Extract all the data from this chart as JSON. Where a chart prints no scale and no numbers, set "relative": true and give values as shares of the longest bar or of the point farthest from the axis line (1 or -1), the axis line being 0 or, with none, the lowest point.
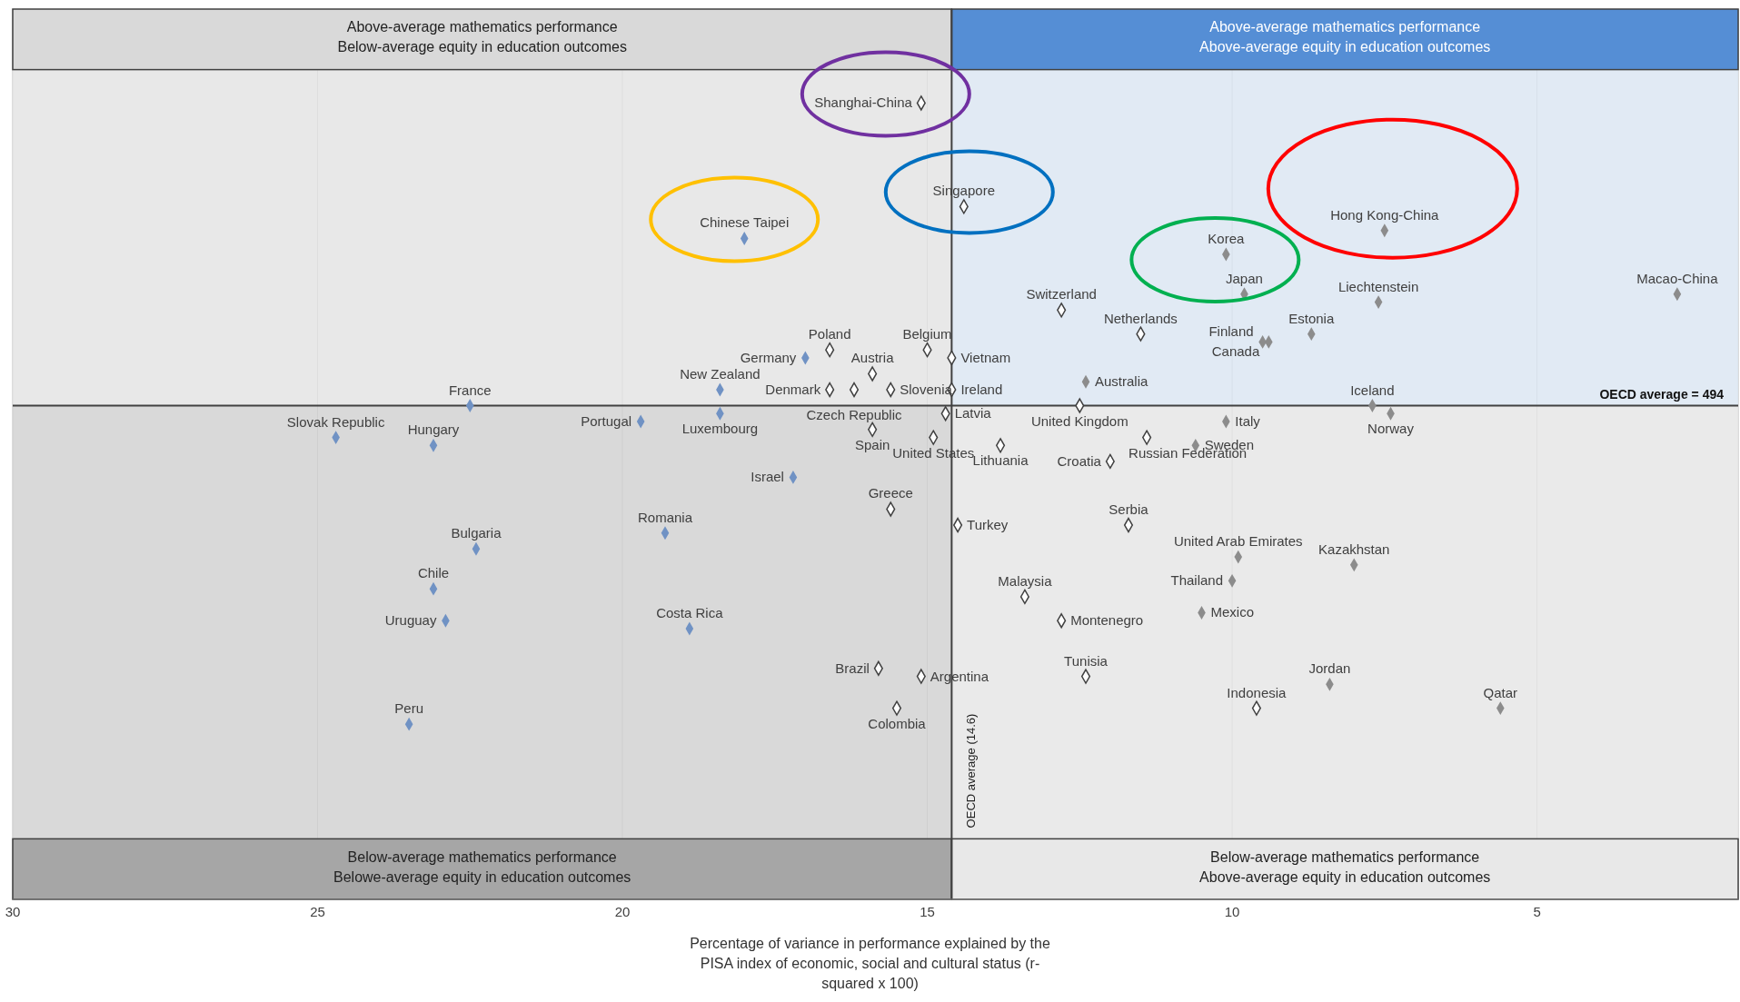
{
  "chart_data": {
    "type": "scatter",
    "relative": true,
    "xlabel": "Percentage of variance in performance explained by the PISA index of economic, social and cultural status (r-squared x 100)",
    "xlim": [
      30,
      1.7
    ],
    "xticks": [
      30,
      25,
      20,
      15,
      10,
      5
    ],
    "grid": "x",
    "marker": "diamond",
    "series": [
      {
        "x": [
          18.0,
          17.0,
          18.4,
          22.5,
          18.4,
          19.7,
          24.7,
          23.1,
          17.2,
          19.3,
          22.4,
          23.1,
          22.9,
          18.9,
          23.5,
          7.5,
          10.1,
          9.8,
          7.6,
          2.7,
          8.7,
          9.5,
          9.4,
          12.4,
          7.7,
          7.4,
          10.1,
          10.6,
          9.9,
          8.0,
          10.0,
          10.5,
          8.4,
          5.6
        ],
        "values": [
          0.83,
          0.68,
          0.64,
          0.62,
          0.61,
          0.6,
          0.58,
          0.57,
          0.53,
          0.46,
          0.44,
          0.39,
          0.35,
          0.34,
          0.22,
          0.84,
          0.81,
          0.76,
          0.75,
          0.76,
          0.71,
          0.7,
          0.7,
          0.65,
          0.62,
          0.61,
          0.6,
          0.57,
          0.43,
          0.42,
          0.4,
          0.36,
          0.27,
          0.24
        ],
        "colors": [
          "#7092c4",
          "#7092c4",
          "#7092c4",
          "#7092c4",
          "#7092c4",
          "#7092c4",
          "#7092c4",
          "#7092c4",
          "#7092c4",
          "#7092c4",
          "#7092c4",
          "#7092c4",
          "#7092c4",
          "#7092c4",
          "#7092c4",
          "#8c8c8c",
          "#8c8c8c",
          "#8c8c8c",
          "#8c8c8c",
          "#8c8c8c",
          "#8c8c8c",
          "#8c8c8c",
          "#8c8c8c",
          "#8c8c8c",
          "#8c8c8c",
          "#8c8c8c",
          "#8c8c8c",
          "#8c8c8c",
          "#8c8c8c",
          "#8c8c8c",
          "#8c8c8c",
          "#8c8c8c",
          "#8c8c8c",
          "#8c8c8c"
        ]
      },
      {
        "x": [
          15.1,
          14.4,
          16.6,
          15.0,
          14.6,
          15.9,
          15.6,
          14.6,
          16.6,
          16.2,
          14.7,
          12.5,
          15.9,
          11.4,
          14.9,
          13.8,
          12.8,
          11.5,
          12.0,
          15.6,
          11.7,
          14.5,
          13.4,
          12.8,
          12.4,
          9.6,
          15.8,
          15.1,
          15.5
        ],
        "values": [
          1.0,
          0.87,
          0.69,
          0.69,
          0.68,
          0.66,
          0.64,
          0.64,
          0.64,
          0.64,
          0.61,
          0.62,
          0.59,
          0.58,
          0.58,
          0.57,
          0.74,
          0.71,
          0.55,
          0.49,
          0.47,
          0.47,
          0.38,
          0.35,
          0.28,
          0.24,
          0.29,
          0.28,
          0.24
        ],
        "color": "#404040"
      }
    ],
    "ref_lines": [
      {
        "axis": "x",
        "value": 14.6,
        "label": "OECD average (14.6)",
        "color": "#404040"
      },
      {
        "axis": "y",
        "value": 0.62,
        "color": "#404040"
      }
    ],
    "annotations": [
      "Above-average mathematics performance\nBelow-average equity in education outcomes",
      "Above-average mathematics performance\nAbove-average equity in education outcomes",
      "Below-average mathematics performance\nBelowe-average equity in education outcomes",
      "Below-average mathematics performance\nAbove-average equity in education outcomes",
      "OECD average = 494",
      {
        "text": "Chinese Taipei",
        "x": 18.0,
        "y": 0.83
      },
      {
        "text": "Germany",
        "x": 17.0,
        "y": 0.68
      },
      {
        "text": "New Zealand",
        "x": 18.4,
        "y": 0.64
      },
      {
        "text": "France",
        "x": 22.5,
        "y": 0.62
      },
      {
        "text": "Luxembourg",
        "x": 18.4,
        "y": 0.61
      },
      {
        "text": "Portugal",
        "x": 19.7,
        "y": 0.6
      },
      {
        "text": "Slovak Republic",
        "x": 24.7,
        "y": 0.58
      },
      {
        "text": "Hungary",
        "x": 23.1,
        "y": 0.57
      },
      {
        "text": "Israel",
        "x": 17.2,
        "y": 0.53
      },
      {
        "text": "Romania",
        "x": 19.3,
        "y": 0.46
      },
      {
        "text": "Bulgaria",
        "x": 22.4,
        "y": 0.44
      },
      {
        "text": "Chile",
        "x": 23.1,
        "y": 0.39
      },
      {
        "text": "Uruguay",
        "x": 22.9,
        "y": 0.35
      },
      {
        "text": "Costa Rica",
        "x": 18.9,
        "y": 0.34
      },
      {
        "text": "Peru",
        "x": 23.5,
        "y": 0.22
      },
      {
        "text": "Hong Kong-China",
        "x": 7.5,
        "y": 0.84
      },
      {
        "text": "Korea",
        "x": 10.1,
        "y": 0.81
      },
      {
        "text": "Japan",
        "x": 9.8,
        "y": 0.76
      },
      {
        "text": "Liechtenstein",
        "x": 7.6,
        "y": 0.75
      },
      {
        "text": "Macao-China",
        "x": 2.7,
        "y": 0.76
      },
      {
        "text": "Estonia",
        "x": 8.7,
        "y": 0.71
      },
      {
        "text": "Finland",
        "x": 9.5,
        "y": 0.7
      },
      {
        "text": "Canada",
        "x": 9.4,
        "y": 0.7
      },
      {
        "text": "Australia",
        "x": 12.4,
        "y": 0.65
      },
      {
        "text": "Iceland",
        "x": 7.7,
        "y": 0.62
      },
      {
        "text": "Norway",
        "x": 7.4,
        "y": 0.61
      },
      {
        "text": "Italy",
        "x": 10.1,
        "y": 0.6
      },
      {
        "text": "Sweden",
        "x": 10.6,
        "y": 0.57
      },
      {
        "text": "United Arab Emirates",
        "x": 9.9,
        "y": 0.43
      },
      {
        "text": "Kazakhstan",
        "x": 8.0,
        "y": 0.42
      },
      {
        "text": "Thailand",
        "x": 10.0,
        "y": 0.4
      },
      {
        "text": "Mexico",
        "x": 10.5,
        "y": 0.36
      },
      {
        "text": "Jordan",
        "x": 8.4,
        "y": 0.27
      },
      {
        "text": "Qatar",
        "x": 5.6,
        "y": 0.24
      },
      {
        "text": "Shanghai-China",
        "x": 15.1,
        "y": 1.0
      },
      {
        "text": "Singapore",
        "x": 14.4,
        "y": 0.87
      },
      {
        "text": "Poland",
        "x": 16.6,
        "y": 0.69
      },
      {
        "text": "Belgium",
        "x": 15.0,
        "y": 0.69
      },
      {
        "text": "Vietnam",
        "x": 14.6,
        "y": 0.68
      },
      {
        "text": "Austria",
        "x": 15.9,
        "y": 0.66
      },
      {
        "text": "Slovenia",
        "x": 15.6,
        "y": 0.64
      },
      {
        "text": "Ireland",
        "x": 14.6,
        "y": 0.64
      },
      {
        "text": "Denmark",
        "x": 16.6,
        "y": 0.64
      },
      {
        "text": "Czech Republic",
        "x": 16.2,
        "y": 0.64
      },
      {
        "text": "Latvia",
        "x": 14.7,
        "y": 0.61
      },
      {
        "text": "United Kingdom",
        "x": 12.5,
        "y": 0.62
      },
      {
        "text": "Spain",
        "x": 15.9,
        "y": 0.59
      },
      {
        "text": "Russian Federation",
        "x": 11.4,
        "y": 0.58
      },
      {
        "text": "United States",
        "x": 14.9,
        "y": 0.58
      },
      {
        "text": "Lithuania",
        "x": 13.8,
        "y": 0.57
      },
      {
        "text": "Switzerland",
        "x": 12.8,
        "y": 0.74
      },
      {
        "text": "Netherlands",
        "x": 11.5,
        "y": 0.71
      },
      {
        "text": "Croatia",
        "x": 12.0,
        "y": 0.55
      },
      {
        "text": "Greece",
        "x": 15.6,
        "y": 0.49
      },
      {
        "text": "Serbia",
        "x": 11.7,
        "y": 0.47
      },
      {
        "text": "Turkey",
        "x": 14.5,
        "y": 0.47
      },
      {
        "text": "Malaysia",
        "x": 13.4,
        "y": 0.38
      },
      {
        "text": "Montenegro",
        "x": 12.8,
        "y": 0.35
      },
      {
        "text": "Tunisia",
        "x": 12.4,
        "y": 0.28
      },
      {
        "text": "Indonesia",
        "x": 9.6,
        "y": 0.24
      },
      {
        "text": "Brazil",
        "x": 15.8,
        "y": 0.29
      },
      {
        "text": "Argentina",
        "x": 15.1,
        "y": 0.28
      },
      {
        "text": "Colombia",
        "x": 15.5,
        "y": 0.24
      }
    ]
  }
}
